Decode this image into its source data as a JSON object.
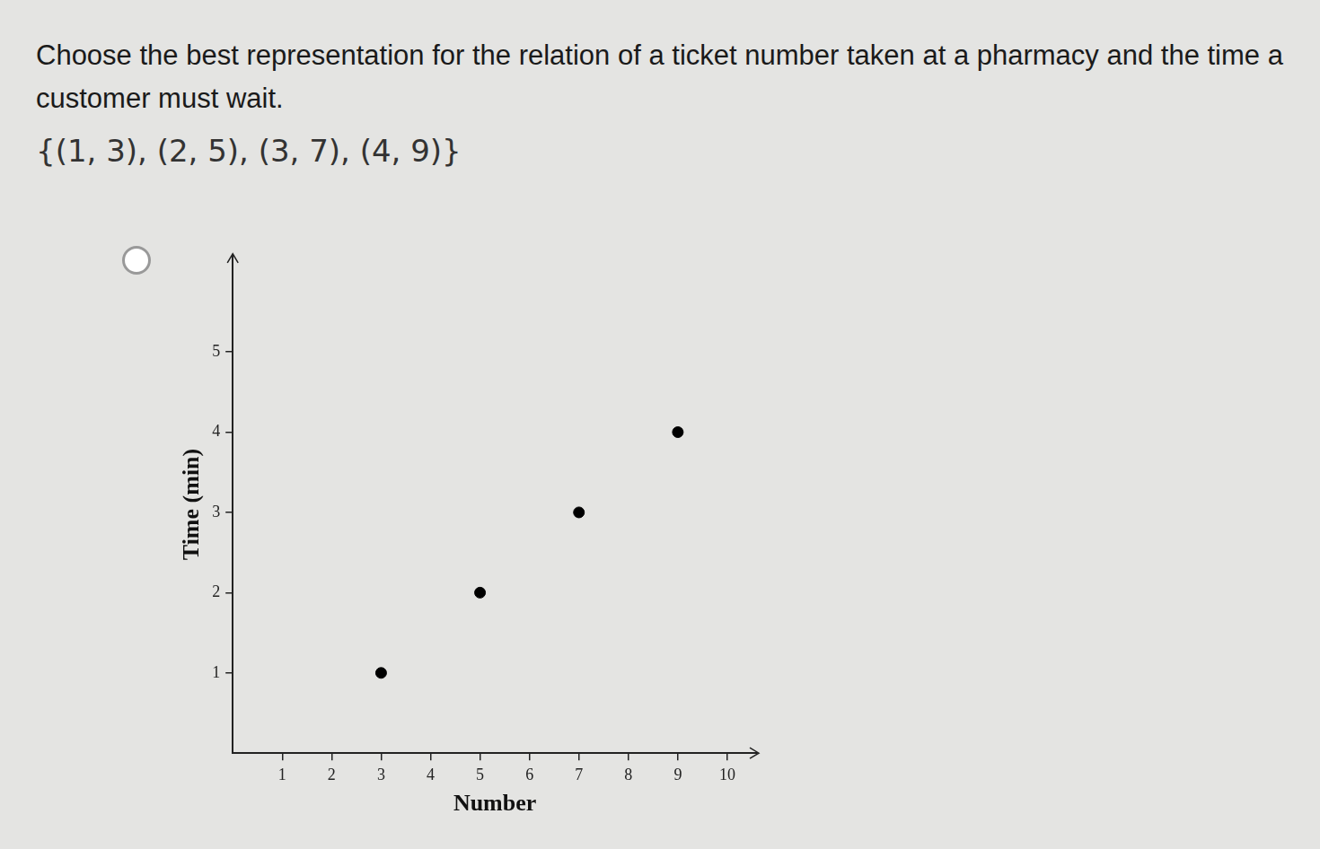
{
  "question": "Choose the best representation for the relation of a ticket number taken at a pharmacy and the time a customer must wait.",
  "relation": "{(1, 3), (2, 5), (3, 7), (4, 9)}",
  "chart_data": {
    "type": "scatter",
    "x_label": "Number",
    "y_label": "Time (min)",
    "x": [
      3,
      5,
      7,
      9
    ],
    "values": [
      1,
      2,
      3,
      4
    ],
    "color": "#000000",
    "marker": "circle",
    "xlim": [
      0,
      10.6
    ],
    "ylim": [
      0,
      6.2
    ],
    "xticks": [
      1,
      2,
      3,
      4,
      5,
      6,
      7,
      8,
      9,
      10
    ],
    "yticks": [
      1,
      2,
      3,
      4,
      5
    ],
    "grid": false
  }
}
